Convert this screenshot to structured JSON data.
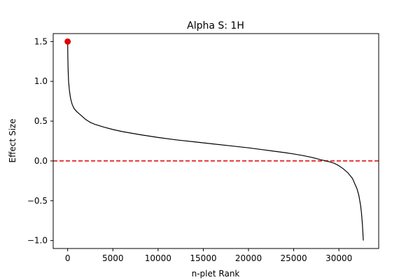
{
  "chart_data": {
    "type": "line",
    "title": "Alpha S: 1H",
    "xlabel": "n-plet Rank",
    "ylabel": "Effect Size",
    "xlim": [
      -1600,
      34400
    ],
    "ylim": [
      -1.1,
      1.6
    ],
    "x_ticks": [
      0,
      5000,
      10000,
      15000,
      20000,
      25000,
      30000
    ],
    "x_tick_labels": [
      "0",
      "5000",
      "10000",
      "15000",
      "20000",
      "25000",
      "30000"
    ],
    "y_ticks": [
      -1.0,
      -0.5,
      0.0,
      0.5,
      1.0,
      1.5
    ],
    "y_tick_labels": [
      "−1.0",
      "−0.5",
      "0.0",
      "0.5",
      "1.0",
      "1.5"
    ],
    "grid": false,
    "series": [
      {
        "color": "#000000",
        "x": [
          0,
          20,
          50,
          100,
          200,
          300,
          400,
          500,
          700,
          1000,
          1500,
          2000,
          2500,
          3000,
          4000,
          5000,
          6000,
          7000,
          8000,
          10000,
          12000,
          14000,
          16000,
          18000,
          20000,
          22000,
          24000,
          25000,
          26000,
          27000,
          28000,
          28500,
          29000,
          29500,
          30000,
          30500,
          31000,
          31500,
          32000,
          32200,
          32400,
          32500,
          32600,
          32650,
          32700
        ],
        "y": [
          1.5,
          1.3,
          1.15,
          1.0,
          0.88,
          0.8,
          0.75,
          0.71,
          0.66,
          0.62,
          0.57,
          0.52,
          0.485,
          0.46,
          0.425,
          0.395,
          0.37,
          0.35,
          0.33,
          0.295,
          0.265,
          0.24,
          0.215,
          0.19,
          0.165,
          0.135,
          0.105,
          0.088,
          0.068,
          0.045,
          0.015,
          0.002,
          -0.012,
          -0.03,
          -0.06,
          -0.1,
          -0.15,
          -0.22,
          -0.35,
          -0.43,
          -0.56,
          -0.66,
          -0.8,
          -0.9,
          -1.0
        ]
      }
    ],
    "highlight_point": {
      "x": 0,
      "y": 1.5,
      "color": "#e00000"
    },
    "reference_line": {
      "y": 0.0,
      "color": "#e00000",
      "style": "dashed"
    }
  }
}
